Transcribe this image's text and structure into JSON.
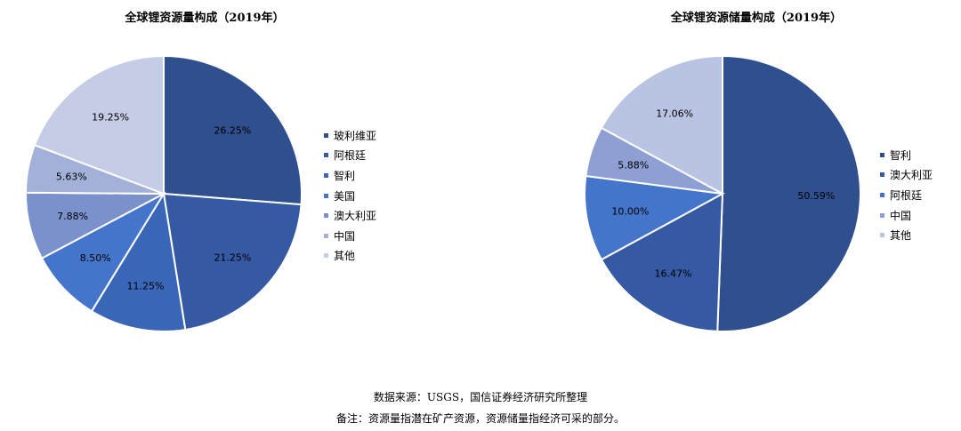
{
  "chart_data": [
    {
      "type": "pie",
      "title": "全球锂资源量构成（2019年）",
      "categories": [
        "玻利维亚",
        "阿根廷",
        "智利",
        "美国",
        "澳大利亚",
        "中国",
        "其他"
      ],
      "values": [
        26.25,
        21.25,
        11.25,
        8.5,
        7.88,
        5.63,
        19.25
      ],
      "labels": [
        "26.25%",
        "21.25%",
        "11.25%",
        "8.50%",
        "7.88%",
        "5.63%",
        "19.25%"
      ],
      "colors": [
        "#2f4f8e",
        "#3559a3",
        "#3a66b8",
        "#4575cb",
        "#7b91cc",
        "#a3b1d9",
        "#c5cde6"
      ],
      "legend_position": "right"
    },
    {
      "type": "pie",
      "title": "全球锂资源储量构成（2019年）",
      "categories": [
        "智利",
        "澳大利亚",
        "阿根廷",
        "中国",
        "其他"
      ],
      "values": [
        50.59,
        16.47,
        10.0,
        5.88,
        17.06
      ],
      "labels": [
        "50.59%",
        "16.47%",
        "10.00%",
        "5.88%",
        "17.06%"
      ],
      "colors": [
        "#2f4f8e",
        "#3559a3",
        "#4575cb",
        "#8d9fd3",
        "#b9c3e2"
      ],
      "legend_position": "right"
    }
  ],
  "footer": {
    "source": "数据来源：USGS，国信证券经济研究所整理",
    "note": "备注：资源量指潜在矿产资源，资源储量指经济可采的部分。"
  }
}
